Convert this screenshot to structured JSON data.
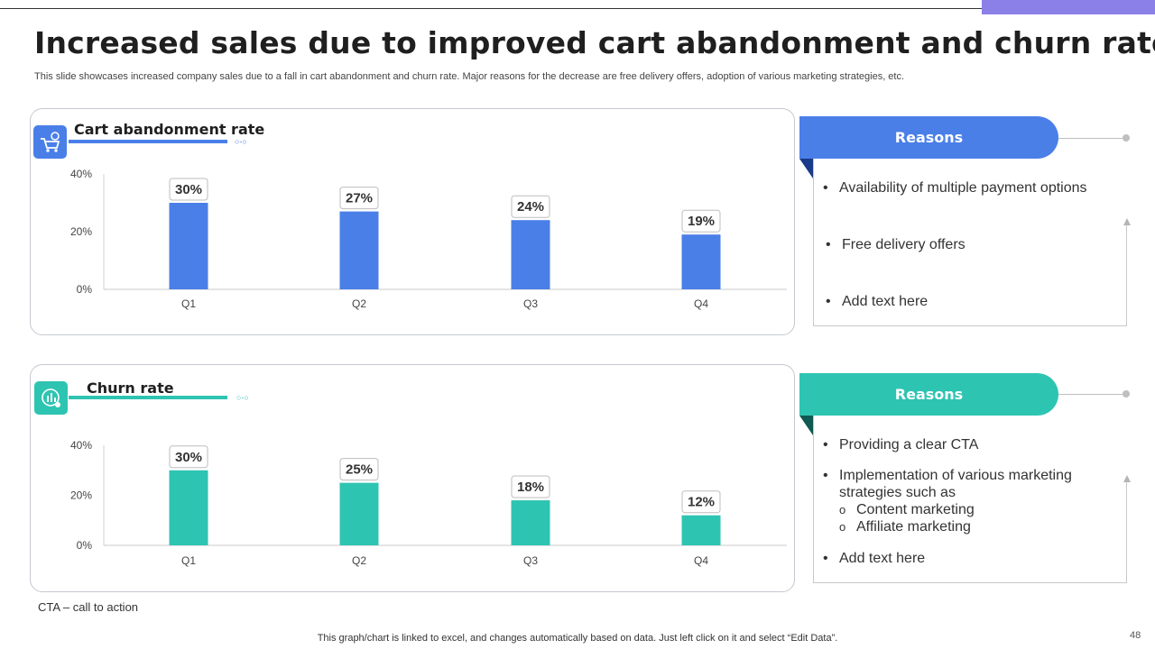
{
  "slide": {
    "title": "Increased sales due to improved cart abandonment and churn rate",
    "subtitle": "This slide showcases increased company sales due to a fall in cart abandonment and churn rate. Major reasons for the decrease are free delivery offers, adoption of various marketing strategies, etc.",
    "footnote": "CTA – call to action",
    "bottom_note": "This graph/chart is linked to excel, and changes automatically based on data. Just left click on it and select “Edit Data”.",
    "page_number": "48"
  },
  "colors": {
    "blue": "#4a7fe8",
    "teal": "#2ec4b2",
    "accent_purple": "#8b80e8"
  },
  "panels": [
    {
      "title": "Cart abandonment rate",
      "icon": "shopping-cart-icon"
    },
    {
      "title": "Churn rate",
      "icon": "user-churn-icon"
    }
  ],
  "reasons": [
    {
      "header": "Reasons",
      "items": [
        {
          "text": "Availability of multiple payment options"
        },
        {
          "text": "Free delivery offers"
        },
        {
          "text": "Add text here"
        }
      ]
    },
    {
      "header": "Reasons",
      "items": [
        {
          "text": "Providing a clear CTA"
        },
        {
          "text": "Implementation  of various marketing",
          "continuation": "strategies such as",
          "subitems": [
            "Content marketing",
            "Affiliate marketing"
          ]
        },
        {
          "text": "Add text here"
        }
      ]
    }
  ],
  "chart_data": [
    {
      "type": "bar",
      "title": "Cart abandonment rate",
      "categories": [
        "Q1",
        "Q2",
        "Q3",
        "Q4"
      ],
      "values": [
        30,
        27,
        24,
        19
      ],
      "data_labels": [
        "30%",
        "27%",
        "24%",
        "19%"
      ],
      "ylim": [
        0,
        40
      ],
      "yticks": [
        "0%",
        "20%",
        "40%"
      ],
      "color": "#4a7fe8"
    },
    {
      "type": "bar",
      "title": "Churn rate",
      "categories": [
        "Q1",
        "Q2",
        "Q3",
        "Q4"
      ],
      "values": [
        30,
        25,
        18,
        12
      ],
      "data_labels": [
        "30%",
        "25%",
        "18%",
        "12%"
      ],
      "ylim": [
        0,
        40
      ],
      "yticks": [
        "0%",
        "20%",
        "40%"
      ],
      "color": "#2ec4b2"
    }
  ]
}
